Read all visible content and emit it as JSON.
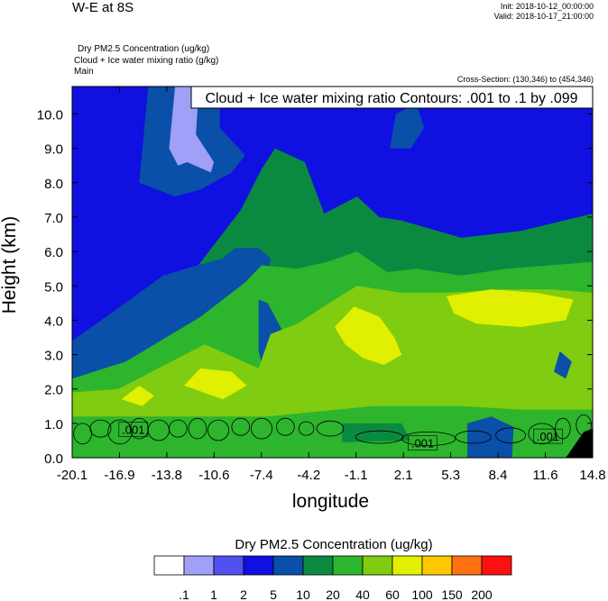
{
  "header": {
    "title": "W-E at 8S",
    "init": "Init: 2018-10-12_00:00:00",
    "valid": "Valid: 2018-10-17_21:00:00",
    "field_line1": "Dry PM2.5 Concentration   (ug/kg)",
    "field_line2": "Cloud + Ice water mixing ratio   (g/kg)",
    "field_line3": "Main",
    "cross_section": "Cross-Section: (130,346) to (454,346)"
  },
  "chart_data": {
    "type": "heatmap",
    "title": "Cloud + Ice water mixing ratio Contours: .001 to .1 by .099",
    "xlabel": "longitude",
    "ylabel": "Height (km)",
    "x_ticks": [
      "-20.1",
      "-16.9",
      "-13.8",
      "-10.6",
      "-7.4",
      "-4.2",
      "-1.1",
      "2.1",
      "5.3",
      "8.4",
      "11.6",
      "14.8"
    ],
    "y_ticks": [
      "0.0",
      "1.0",
      "2.0",
      "3.0",
      "4.0",
      "5.0",
      "6.0",
      "7.0",
      "8.0",
      "9.0",
      "10.0"
    ],
    "xlim": [
      -20.1,
      14.8
    ],
    "ylim": [
      0,
      10.8
    ],
    "contour_labels": [
      {
        "text": ".001",
        "x": -16.0,
        "y": 0.8
      },
      {
        "text": ".001",
        "x": 3.4,
        "y": 0.4
      },
      {
        "text": ".001",
        "x": 11.8,
        "y": 0.6
      }
    ],
    "colorbar": {
      "title": "Dry PM2.5 Concentration  (ug/kg)",
      "labels": [
        ".1",
        "1",
        "2",
        "5",
        "10",
        "20",
        "40",
        "60",
        "100",
        "150",
        "200"
      ],
      "colors": [
        "#ffffff",
        "#a0a0f8",
        "#5050f0",
        "#1010e0",
        "#0a4fa8",
        "#0a8a40",
        "#2db52d",
        "#80cc10",
        "#e0f000",
        "#ffc800",
        "#ff7010",
        "#ff1010"
      ]
    },
    "fill_colors": {
      "very_low": "#a0a0f8",
      "low": "#1010e0",
      "lowmid": "#0a4fa8",
      "mid": "#0a8a40",
      "midhigh": "#2db52d",
      "high": "#80cc10",
      "veryhigh": "#e0f000",
      "terrain": "#000000"
    }
  }
}
